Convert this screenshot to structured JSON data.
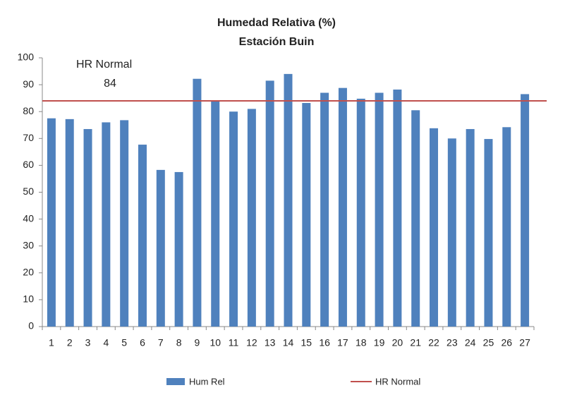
{
  "chart_data": {
    "type": "bar",
    "title": "Humedad Relativa (%)",
    "subtitle": "Estación Buin",
    "categories": [
      "1",
      "2",
      "3",
      "4",
      "5",
      "6",
      "7",
      "8",
      "9",
      "10",
      "11",
      "12",
      "13",
      "14",
      "15",
      "16",
      "17",
      "18",
      "19",
      "20",
      "21",
      "22",
      "23",
      "24",
      "25",
      "26",
      "27"
    ],
    "series": [
      {
        "name": "Hum Rel",
        "color": "#4f81bd",
        "values": [
          77.5,
          77.2,
          73.5,
          76,
          76.8,
          67.7,
          58.3,
          57.5,
          92.2,
          83.8,
          80,
          81,
          91.5,
          94,
          83.2,
          87,
          88.8,
          84.8,
          87,
          88.2,
          80.5,
          73.8,
          70,
          73.5,
          69.8,
          74.2,
          86.5
        ]
      }
    ],
    "reference_line": {
      "name": "HR Normal",
      "value": 84,
      "color": "#c0504d"
    },
    "ylim": [
      0,
      100
    ],
    "yticks": [
      0,
      10,
      20,
      30,
      40,
      50,
      60,
      70,
      80,
      90,
      100
    ],
    "grid": false,
    "legend": "bottom"
  }
}
